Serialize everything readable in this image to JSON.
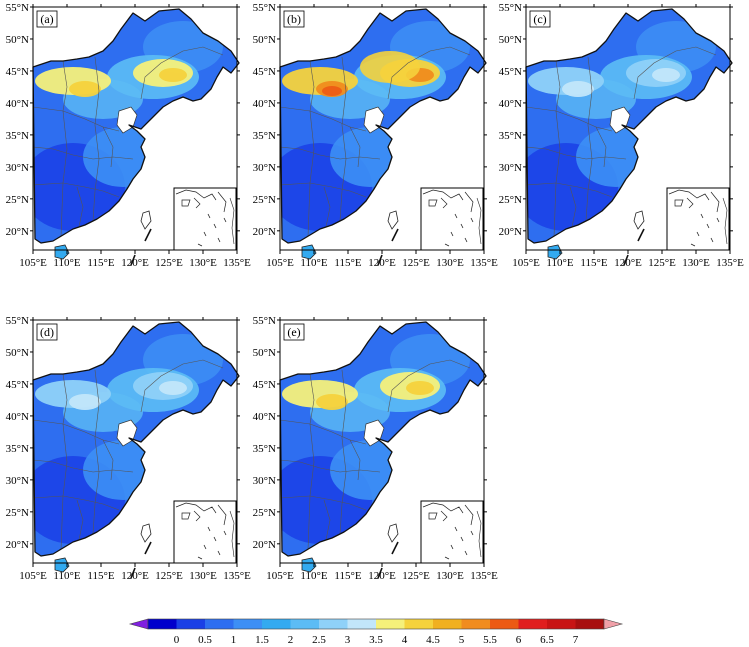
{
  "panels": [
    {
      "label": "(a)",
      "warm": "mid"
    },
    {
      "label": "(b)",
      "warm": "high"
    },
    {
      "label": "(c)",
      "warm": "low"
    },
    {
      "label": "(d)",
      "warm": "low"
    },
    {
      "label": "(e)",
      "warm": "mid"
    }
  ],
  "lat_ticks": [
    "20°N",
    "25°N",
    "30°N",
    "35°N",
    "40°N",
    "45°N",
    "50°N",
    "55°N"
  ],
  "lon_ticks": [
    "105°E",
    "110°E",
    "115°E",
    "120°E",
    "125°E",
    "130°E",
    "135°E"
  ],
  "colorbar": {
    "labels": [
      "0",
      "0.5",
      "1",
      "1.5",
      "2",
      "2.5",
      "3",
      "3.5",
      "4",
      "4.5",
      "5",
      "5.5",
      "6",
      "6.5",
      "7"
    ],
    "colors": [
      "#0000cc",
      "#1a3fe6",
      "#2e6ef0",
      "#3d8ff5",
      "#33aaf0",
      "#5cbcf5",
      "#8fd1f8",
      "#c2e6fa",
      "#f5f07a",
      "#f5d23c",
      "#f0b020",
      "#f08c1e",
      "#ec5a14",
      "#e01e1e",
      "#c81414",
      "#a80f0f"
    ],
    "min_arrow_color": "#8020e0",
    "max_arrow_color": "#f0a0a8"
  }
}
